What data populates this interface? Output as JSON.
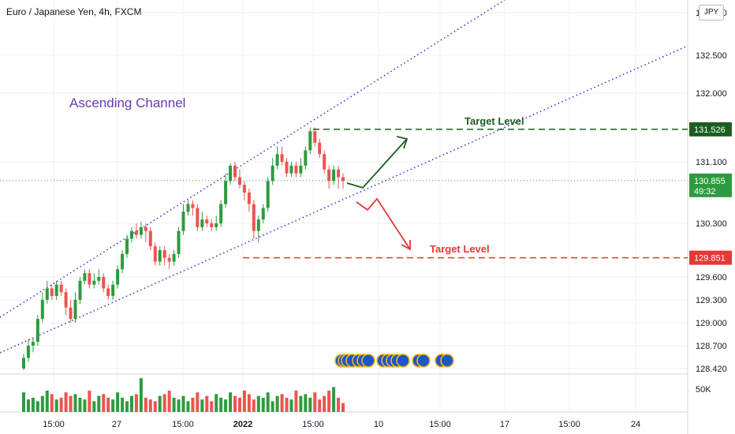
{
  "header": {
    "symbol_title": "Euro / Japanese Yen, 4h, FXCM"
  },
  "currency_button": "JPY",
  "chart_data": {
    "type": "candlestick",
    "title": "Euro / Japanese Yen, 4h, FXCM",
    "annotation": "Ascending Channel",
    "target_up": {
      "label": "Target Level",
      "price": 131.526
    },
    "target_down": {
      "label": "Target Level",
      "price": 129.851
    },
    "last_price": {
      "price": 130.855,
      "countdown": "49:32"
    },
    "y_ticks": [
      "133.000",
      "132.500",
      "132.000",
      "131.100",
      "130.300",
      "129.600",
      "129.300",
      "129.000",
      "128.700",
      "128.420"
    ],
    "volume_label": "50K",
    "x_ticks": [
      "15:00",
      "27",
      "15:00",
      "2022",
      "15:00",
      "10",
      "15:00",
      "17",
      "15:00",
      "24"
    ],
    "colors": {
      "up": "#26a69a",
      "up_candle": "#2e9b3e",
      "down": "#ef5350",
      "channel": "#2a2ed6",
      "target_up": "#1b5e20",
      "target_down": "#e53935",
      "annotation": "#673ab7"
    },
    "candles": [
      [
        128.42,
        128.55,
        128.4,
        128.6
      ],
      [
        128.55,
        128.7,
        128.5,
        128.78
      ],
      [
        128.7,
        128.75,
        128.62,
        128.8
      ],
      [
        128.75,
        129.05,
        128.7,
        129.1
      ],
      [
        129.05,
        129.3,
        129.0,
        129.4
      ],
      [
        129.3,
        129.45,
        129.25,
        129.55
      ],
      [
        129.45,
        129.35,
        129.3,
        129.5
      ],
      [
        129.35,
        129.5,
        129.3,
        129.55
      ],
      [
        129.5,
        129.4,
        129.35,
        129.55
      ],
      [
        129.4,
        129.2,
        129.1,
        129.45
      ],
      [
        129.2,
        129.05,
        129.0,
        129.3
      ],
      [
        129.05,
        129.3,
        129.0,
        129.4
      ],
      [
        129.3,
        129.55,
        129.25,
        129.6
      ],
      [
        129.55,
        129.65,
        129.5,
        129.7
      ],
      [
        129.65,
        129.5,
        129.45,
        129.7
      ],
      [
        129.5,
        129.55,
        129.45,
        129.65
      ],
      [
        129.55,
        129.6,
        129.5,
        129.7
      ],
      [
        129.6,
        129.45,
        129.4,
        129.65
      ],
      [
        129.45,
        129.35,
        129.3,
        129.5
      ],
      [
        129.35,
        129.5,
        129.3,
        129.55
      ],
      [
        129.5,
        129.7,
        129.45,
        129.75
      ],
      [
        129.7,
        129.9,
        129.65,
        129.95
      ],
      [
        129.9,
        130.1,
        129.85,
        130.15
      ],
      [
        130.1,
        130.2,
        130.05,
        130.25
      ],
      [
        130.2,
        130.15,
        130.1,
        130.3
      ],
      [
        130.15,
        130.25,
        130.1,
        130.32
      ],
      [
        130.25,
        130.2,
        130.05,
        130.3
      ],
      [
        130.2,
        130.0,
        129.95,
        130.25
      ],
      [
        130.0,
        129.8,
        129.75,
        130.05
      ],
      [
        129.8,
        129.95,
        129.75,
        130.0
      ],
      [
        129.95,
        129.85,
        129.75,
        130.0
      ],
      [
        129.85,
        129.8,
        129.7,
        129.9
      ],
      [
        129.8,
        129.9,
        129.75,
        129.95
      ],
      [
        129.9,
        130.2,
        129.85,
        130.25
      ],
      [
        130.2,
        130.45,
        130.15,
        130.55
      ],
      [
        130.45,
        130.55,
        130.4,
        130.6
      ],
      [
        130.55,
        130.5,
        130.4,
        130.6
      ],
      [
        130.5,
        130.25,
        130.2,
        130.55
      ],
      [
        130.25,
        130.35,
        130.2,
        130.45
      ],
      [
        130.35,
        130.3,
        130.25,
        130.4
      ],
      [
        130.3,
        130.25,
        130.2,
        130.35
      ],
      [
        130.25,
        130.3,
        130.2,
        130.4
      ],
      [
        130.3,
        130.55,
        130.25,
        130.6
      ],
      [
        130.55,
        130.85,
        130.5,
        130.95
      ],
      [
        130.85,
        131.05,
        130.8,
        131.08
      ],
      [
        131.05,
        130.9,
        130.85,
        131.1
      ],
      [
        130.9,
        130.8,
        130.75,
        131.0
      ],
      [
        130.8,
        130.7,
        130.6,
        130.85
      ],
      [
        130.7,
        130.55,
        130.45,
        130.75
      ],
      [
        130.55,
        130.2,
        130.1,
        130.6
      ],
      [
        130.2,
        130.35,
        130.05,
        130.4
      ],
      [
        130.35,
        130.5,
        130.3,
        130.55
      ],
      [
        130.5,
        130.85,
        130.45,
        130.9
      ],
      [
        130.85,
        131.05,
        130.8,
        131.15
      ],
      [
        131.05,
        131.2,
        131.0,
        131.3
      ],
      [
        131.2,
        131.1,
        131.05,
        131.3
      ],
      [
        131.1,
        130.95,
        130.9,
        131.15
      ],
      [
        130.95,
        131.05,
        130.9,
        131.1
      ],
      [
        131.05,
        130.95,
        130.9,
        131.1
      ],
      [
        130.95,
        131.05,
        130.9,
        131.15
      ],
      [
        131.05,
        131.25,
        131.0,
        131.3
      ],
      [
        131.25,
        131.5,
        131.2,
        131.55
      ],
      [
        131.5,
        131.35,
        131.3,
        131.55
      ],
      [
        131.35,
        131.2,
        131.15,
        131.4
      ],
      [
        131.2,
        131.0,
        130.95,
        131.25
      ],
      [
        131.0,
        130.85,
        130.75,
        131.05
      ],
      [
        130.85,
        131.0,
        130.8,
        131.05
      ],
      [
        131.0,
        130.9,
        130.75,
        131.05
      ],
      [
        130.9,
        130.85,
        130.75,
        130.95
      ]
    ],
    "volumes": [
      55,
      35,
      40,
      30,
      45,
      60,
      50,
      35,
      40,
      55,
      45,
      50,
      40,
      35,
      60,
      30,
      45,
      50,
      40,
      35,
      55,
      40,
      30,
      45,
      50,
      95,
      40,
      35,
      30,
      45,
      50,
      60,
      40,
      35,
      45,
      30,
      40,
      55,
      35,
      45,
      30,
      50,
      40,
      35,
      55,
      45,
      40,
      60,
      50,
      35,
      45,
      40,
      55,
      30,
      45,
      50,
      40,
      35,
      60,
      45,
      50,
      40,
      55,
      35,
      45,
      60,
      70,
      40,
      25
    ]
  }
}
